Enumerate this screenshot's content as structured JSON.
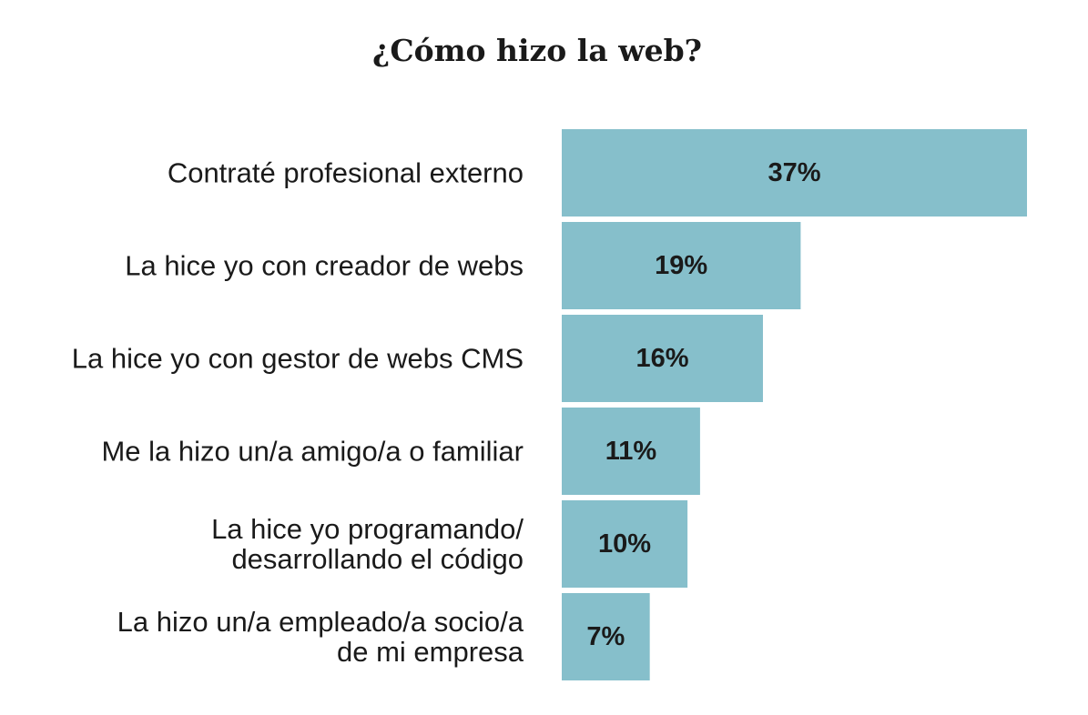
{
  "chart_data": {
    "type": "bar",
    "orientation": "horizontal",
    "title": "¿Cómo hizo la web?",
    "xlabel": "",
    "ylabel": "",
    "categories": [
      [
        "Contraté profesional externo"
      ],
      [
        "La hice yo con creador de webs"
      ],
      [
        "La hice yo con gestor de webs CMS"
      ],
      [
        "Me la hizo un/a amigo/a o familiar"
      ],
      [
        "La hice yo programando/",
        "desarrollando el código"
      ],
      [
        "La hizo un/a empleado/a socio/a",
        "de mi empresa"
      ]
    ],
    "values": [
      37,
      19,
      16,
      11,
      10,
      7
    ],
    "value_labels": [
      "37%",
      "19%",
      "16%",
      "11%",
      "10%",
      "7%"
    ],
    "unit": "%",
    "grid": false,
    "legend": "none",
    "colors": {
      "bar": "#86bfcb",
      "text": "#1a1a1a",
      "background": "#ffffff"
    }
  }
}
